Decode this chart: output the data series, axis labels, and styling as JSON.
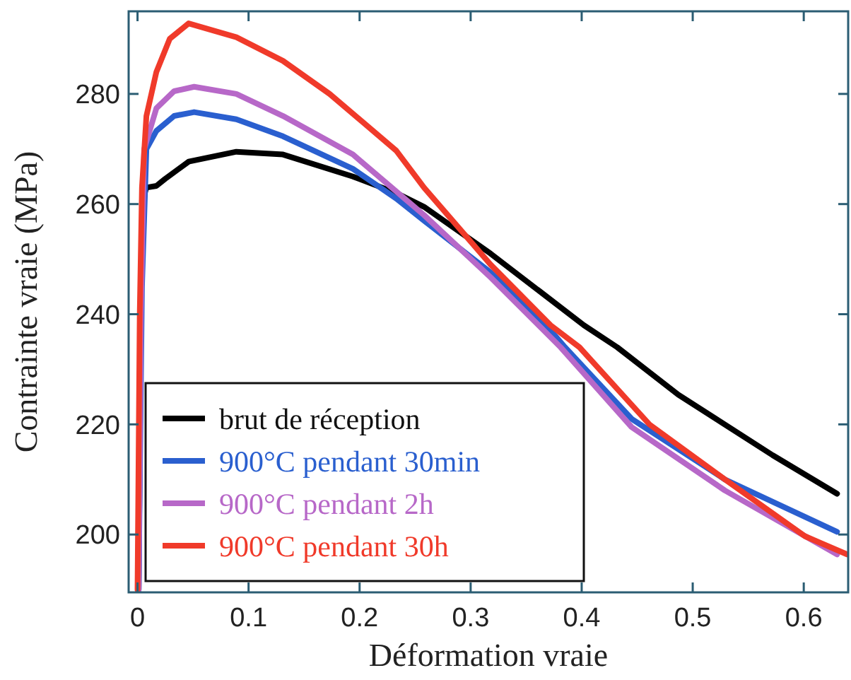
{
  "chart_data": {
    "type": "line",
    "xlabel": "Déformation vraie",
    "ylabel": "Contrainte vraie (MPa)",
    "xlim": [
      -0.008,
      0.64
    ],
    "ylim": [
      189.5,
      295
    ],
    "xticks": [
      0,
      0.1,
      0.2,
      0.3,
      0.4,
      0.5,
      0.6
    ],
    "yticks": [
      200,
      220,
      240,
      260,
      280
    ],
    "legend": "bottom left",
    "grid": false,
    "marker": "none",
    "line_style": "solid",
    "series": [
      {
        "name": "brut de réception",
        "color": "#000000",
        "x": [
          0.001,
          0.003,
          0.005,
          0.008,
          0.017,
          0.025,
          0.046,
          0.089,
          0.131,
          0.194,
          0.233,
          0.258,
          0.318,
          0.402,
          0.432,
          0.487,
          0.572,
          0.63
        ],
        "values": [
          190,
          240,
          261,
          263,
          263.3,
          264.6,
          267.7,
          269.5,
          269,
          265,
          262,
          259.5,
          251,
          238,
          234,
          225.4,
          214.4,
          207.4
        ]
      },
      {
        "name": "900°C pendant 30min",
        "color": "#2a5fcf",
        "x": [
          0.001,
          0.004,
          0.008,
          0.017,
          0.033,
          0.051,
          0.089,
          0.131,
          0.194,
          0.233,
          0.258,
          0.318,
          0.368,
          0.385,
          0.445,
          0.529,
          0.63
        ],
        "values": [
          190,
          245,
          270,
          273.3,
          276,
          276.7,
          275.4,
          272.3,
          266.4,
          261,
          257,
          247.6,
          238,
          234,
          221,
          210,
          200.5
        ]
      },
      {
        "name": "900°C pendant 2h",
        "color": "#b768c8",
        "x": [
          0.001,
          0.003,
          0.006,
          0.017,
          0.033,
          0.051,
          0.089,
          0.131,
          0.194,
          0.258,
          0.318,
          0.381,
          0.445,
          0.529,
          0.63
        ],
        "values": [
          190,
          240,
          270,
          277.4,
          280.5,
          281.3,
          280,
          276,
          269,
          258,
          246.7,
          234,
          219.5,
          208,
          196.4
        ]
      },
      {
        "name": "900°C pendant 30h",
        "color": "#f03a2a",
        "x": [
          0.0,
          0.002,
          0.004,
          0.008,
          0.017,
          0.029,
          0.046,
          0.089,
          0.131,
          0.173,
          0.233,
          0.258,
          0.318,
          0.372,
          0.398,
          0.461,
          0.529,
          0.601,
          0.639
        ],
        "values": [
          190,
          240,
          263,
          276,
          284,
          290,
          292.8,
          290.3,
          286,
          280,
          269.7,
          263,
          249,
          238,
          234,
          220,
          210,
          199.7,
          196.4
        ]
      }
    ]
  }
}
